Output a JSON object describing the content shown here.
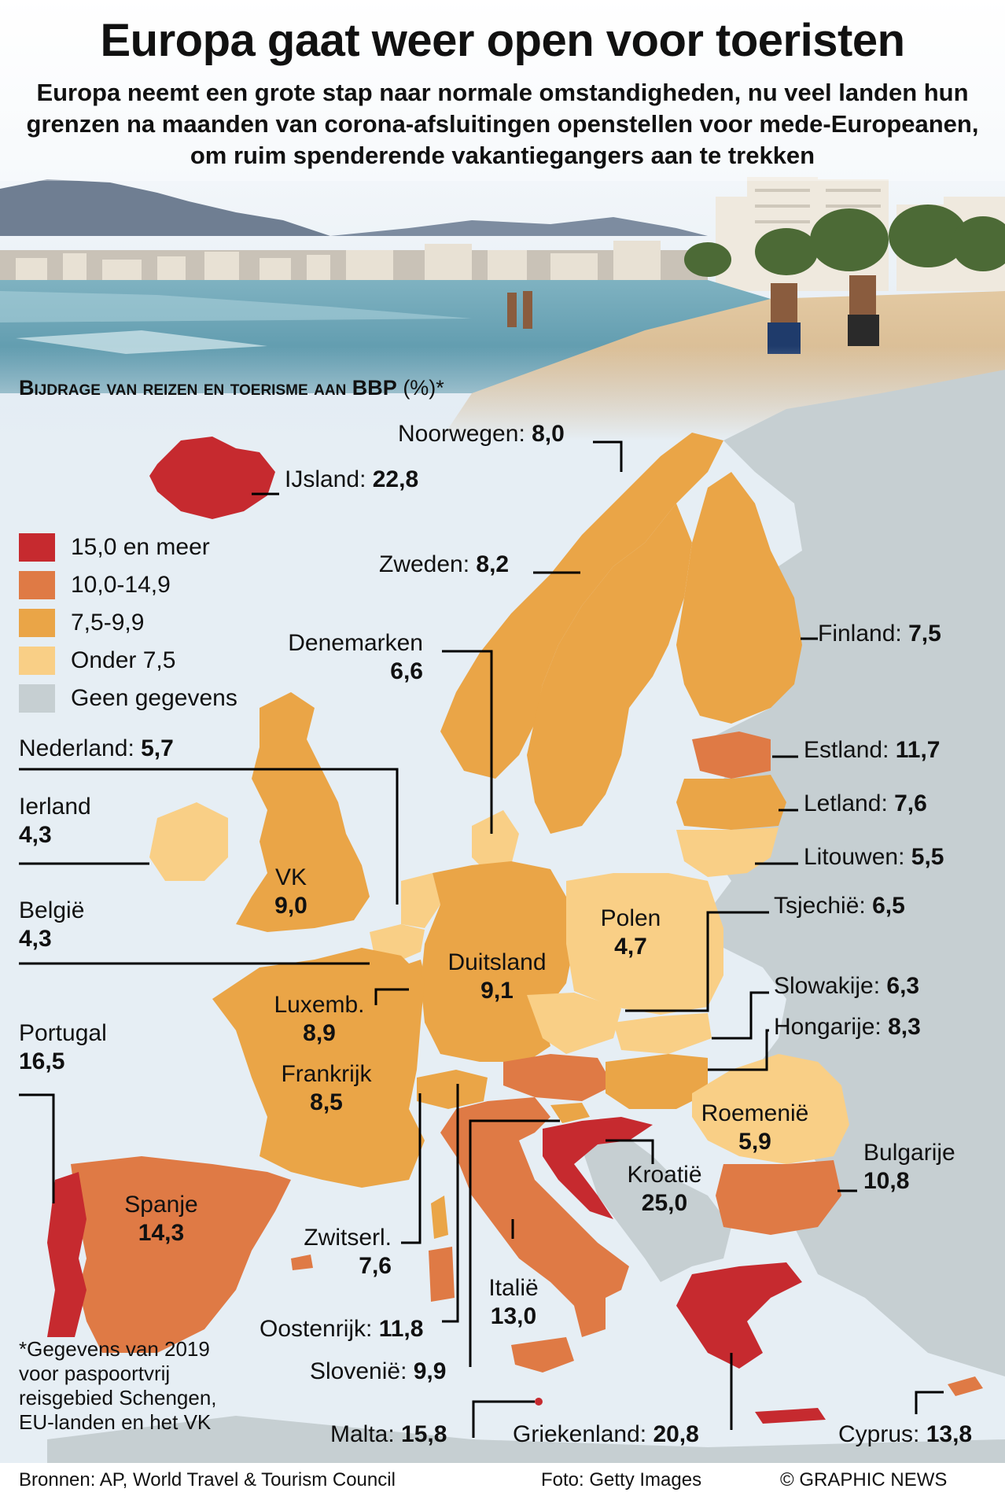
{
  "title": "Europa gaat weer open voor toeristen",
  "subtitle": "Europa neemt een grote stap naar normale omstandigheden, nu veel landen hun grenzen na maanden van corona-afsluitingen openstellen voor mede-Europeanen, om ruim spenderende vakantiegangers aan te trekken",
  "chart_heading": "Bijdrage van reizen en toerisme aan BBP",
  "chart_heading_unit": "(%)*",
  "colors": {
    "cat_15plus": "#c62a2f",
    "cat_10_149": "#df7a45",
    "cat_75_99": "#eaa547",
    "cat_under75": "#f9cf86",
    "no_data": "#c6cfd2",
    "sea": "#e6eef4"
  },
  "legend": [
    {
      "label": "15,0 en meer",
      "color": "#c62a2f"
    },
    {
      "label": "10,0-14,9",
      "color": "#df7a45"
    },
    {
      "label": "7,5-9,9",
      "color": "#eaa547"
    },
    {
      "label": "Onder 7,5",
      "color": "#f9cf86"
    },
    {
      "label": "Geen gegevens",
      "color": "#c6cfd2"
    }
  ],
  "countries": [
    {
      "name": "IJsland",
      "value": "22,8"
    },
    {
      "name": "Noorwegen",
      "value": "8,0"
    },
    {
      "name": "Zweden",
      "value": "8,2"
    },
    {
      "name": "Finland",
      "value": "7,5"
    },
    {
      "name": "Denemarken",
      "value": "6,6"
    },
    {
      "name": "Estland",
      "value": "11,7"
    },
    {
      "name": "Letland",
      "value": "7,6"
    },
    {
      "name": "Litouwen",
      "value": "5,5"
    },
    {
      "name": "Nederland",
      "value": "5,7"
    },
    {
      "name": "Ierland",
      "value": "4,3"
    },
    {
      "name": "VK",
      "value": "9,0"
    },
    {
      "name": "België",
      "value": "4,3"
    },
    {
      "name": "Polen",
      "value": "4,7"
    },
    {
      "name": "Tsjechië",
      "value": "6,5"
    },
    {
      "name": "Duitsland",
      "value": "9,1"
    },
    {
      "name": "Slowakije",
      "value": "6,3"
    },
    {
      "name": "Luxemb.",
      "value": "8,9"
    },
    {
      "name": "Hongarije",
      "value": "8,3"
    },
    {
      "name": "Portugal",
      "value": "16,5"
    },
    {
      "name": "Frankrijk",
      "value": "8,5"
    },
    {
      "name": "Roemenië",
      "value": "5,9"
    },
    {
      "name": "Bulgarije",
      "value": "10,8"
    },
    {
      "name": "Kroatië",
      "value": "25,0"
    },
    {
      "name": "Spanje",
      "value": "14,3"
    },
    {
      "name": "Zwitserl.",
      "value": "7,6"
    },
    {
      "name": "Italië",
      "value": "13,0"
    },
    {
      "name": "Oostenrijk",
      "value": "11,8"
    },
    {
      "name": "Slovenië",
      "value": "9,9"
    },
    {
      "name": "Malta",
      "value": "15,8"
    },
    {
      "name": "Griekenland",
      "value": "20,8"
    },
    {
      "name": "Cyprus",
      "value": "13,8"
    }
  ],
  "footnote": "*Gegevens van 2019 voor paspoortvrij reisgebied Schengen, EU-landen en het VK",
  "footer": {
    "sources": "Bronnen: AP, World Travel & Tourism Council",
    "photo": "Foto: Getty Images",
    "credit": "© GRAPHIC NEWS"
  }
}
